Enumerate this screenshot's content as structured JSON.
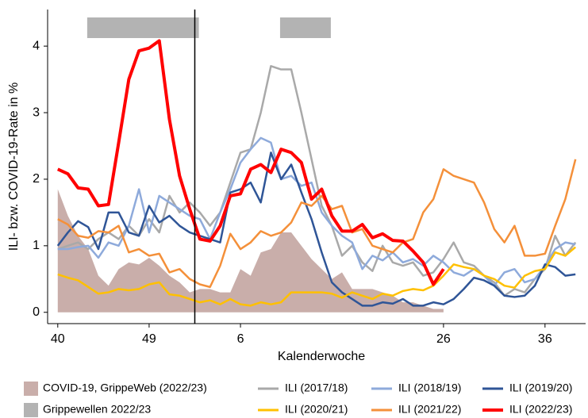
{
  "chart_data": {
    "type": "line",
    "ylabel": "ILI- bzw. COVID-19-Rate in %",
    "xlabel": "Kalenderwoche",
    "x": [
      0,
      1,
      2,
      3,
      4,
      5,
      6,
      7,
      8,
      9,
      10,
      11,
      12,
      13,
      14,
      15,
      16,
      17,
      18,
      19,
      20,
      21,
      22,
      23,
      24,
      25,
      26,
      27,
      28,
      29,
      30,
      31,
      32,
      33,
      34,
      35,
      36,
      37,
      38,
      39,
      40,
      41,
      42,
      43,
      44,
      45,
      46,
      47,
      48,
      49,
      50,
      51
    ],
    "xlim": [
      -1,
      52
    ],
    "xticks": [
      {
        "value": 0,
        "label": "40"
      },
      {
        "value": 9,
        "label": "49"
      },
      {
        "value": 18,
        "label": "6"
      },
      {
        "value": 38,
        "label": "26"
      },
      {
        "value": 48,
        "label": "36"
      }
    ],
    "ylim": [
      -0.17,
      4.55
    ],
    "yticks": [
      0,
      1,
      2,
      3,
      4
    ],
    "vline_x": 13.5,
    "periods": {
      "name": "Grippewellen 2022/23",
      "color": "#b3b3b3",
      "ranges": [
        [
          2.9,
          13.9
        ],
        [
          21.9,
          26.9
        ]
      ]
    },
    "series": [
      {
        "name": "COVID-19, GrippeWeb (2022/23)",
        "color": "#c9aeaa",
        "area": true,
        "values": [
          1.85,
          1.45,
          1.15,
          0.95,
          0.55,
          0.4,
          0.65,
          0.75,
          0.72,
          0.82,
          0.7,
          0.55,
          0.45,
          0.3,
          0.35,
          0.35,
          0.3,
          0.3,
          0.65,
          0.55,
          0.9,
          0.95,
          1.2,
          1.2,
          1.0,
          0.8,
          0.65,
          0.5,
          0.6,
          0.35,
          0.35,
          0.35,
          0.3,
          0.25,
          0.15,
          0.15,
          0.1,
          0.05,
          0.05,
          null,
          null,
          null,
          null,
          null,
          null,
          null,
          null,
          null,
          null,
          null,
          null,
          null
        ]
      },
      {
        "name": "ILI (2017/18)",
        "color": "#a9a9a9",
        "values": [
          0.95,
          1.0,
          1.05,
          0.95,
          1.1,
          1.2,
          1.1,
          1.3,
          1.15,
          1.4,
          1.2,
          1.75,
          1.5,
          1.65,
          1.5,
          1.3,
          1.5,
          1.95,
          2.4,
          2.45,
          3.0,
          3.7,
          3.65,
          3.65,
          3.0,
          2.3,
          1.6,
          1.3,
          0.85,
          1.0,
          0.75,
          0.62,
          1.0,
          0.75,
          0.7,
          0.75,
          0.55,
          0.6,
          0.8,
          1.05,
          0.75,
          0.7,
          0.55,
          0.45,
          0.25,
          0.35,
          0.3,
          0.5,
          0.65,
          1.15,
          0.85,
          1.05
        ]
      },
      {
        "name": "ILI (2018/19)",
        "color": "#8eaadb",
        "values": [
          0.95,
          0.95,
          0.98,
          1.0,
          0.82,
          1.05,
          1.0,
          1.3,
          1.85,
          1.2,
          1.75,
          1.65,
          1.55,
          1.45,
          1.4,
          1.1,
          1.5,
          1.85,
          2.25,
          2.45,
          2.62,
          2.55,
          2.0,
          2.05,
          1.9,
          1.95,
          1.5,
          1.3,
          1.15,
          1.05,
          0.65,
          0.85,
          0.78,
          0.9,
          0.75,
          0.8,
          0.7,
          0.85,
          0.75,
          0.6,
          0.55,
          0.65,
          0.55,
          0.4,
          0.6,
          0.65,
          0.45,
          0.5,
          0.7,
          0.95,
          1.05,
          1.02
        ]
      },
      {
        "name": "ILI (2019/20)",
        "color": "#2f5597",
        "values": [
          1.0,
          1.2,
          1.37,
          1.28,
          0.95,
          1.5,
          1.5,
          1.2,
          1.15,
          1.6,
          1.35,
          1.45,
          1.3,
          1.2,
          1.15,
          1.1,
          1.05,
          1.8,
          1.85,
          1.95,
          1.65,
          2.4,
          2.0,
          2.22,
          1.8,
          1.4,
          0.9,
          0.45,
          0.3,
          0.2,
          0.1,
          0.1,
          0.15,
          0.13,
          0.2,
          0.1,
          0.1,
          0.15,
          0.12,
          0.2,
          0.35,
          0.52,
          0.48,
          0.4,
          0.25,
          0.23,
          0.25,
          0.4,
          0.72,
          0.68,
          0.55,
          0.57
        ]
      },
      {
        "name": "ILI (2020/21)",
        "color": "#ffc000",
        "values": [
          0.57,
          0.52,
          0.48,
          0.38,
          0.28,
          0.3,
          0.35,
          0.33,
          0.35,
          0.42,
          0.45,
          0.27,
          0.25,
          0.2,
          0.15,
          0.18,
          0.12,
          0.2,
          0.12,
          0.1,
          0.15,
          0.12,
          0.15,
          0.3,
          0.3,
          0.3,
          0.3,
          0.28,
          0.22,
          0.3,
          0.25,
          0.2,
          0.28,
          0.25,
          0.32,
          0.35,
          0.33,
          0.4,
          0.55,
          0.72,
          0.68,
          0.65,
          0.55,
          0.5,
          0.4,
          0.37,
          0.55,
          0.62,
          0.65,
          0.9,
          0.85,
          0.98
        ]
      },
      {
        "name": "ILI (2021/22)",
        "color": "#f4903a",
        "values": [
          1.4,
          1.32,
          1.15,
          1.12,
          1.22,
          1.2,
          1.3,
          0.9,
          0.95,
          0.85,
          0.88,
          0.6,
          0.65,
          0.5,
          0.42,
          0.38,
          0.7,
          1.18,
          0.95,
          1.05,
          1.22,
          1.15,
          1.2,
          1.35,
          1.65,
          1.6,
          1.75,
          1.55,
          1.6,
          1.2,
          1.25,
          1.0,
          0.95,
          0.9,
          1.05,
          1.1,
          1.5,
          1.7,
          2.15,
          2.05,
          2.0,
          1.95,
          1.65,
          1.25,
          1.05,
          1.3,
          0.85,
          0.85,
          0.88,
          1.3,
          1.7,
          2.3
        ]
      },
      {
        "name": "ILI (2022/23)",
        "color": "#ff0000",
        "width": 4,
        "values": [
          2.15,
          2.08,
          1.87,
          1.85,
          1.6,
          1.62,
          2.55,
          3.5,
          3.93,
          3.97,
          4.08,
          2.9,
          2.05,
          1.55,
          1.1,
          1.07,
          1.3,
          1.75,
          1.78,
          2.15,
          2.22,
          2.1,
          2.45,
          2.4,
          2.25,
          1.7,
          1.85,
          1.45,
          1.22,
          1.22,
          1.32,
          1.12,
          1.18,
          1.08,
          1.07,
          0.92,
          0.75,
          0.42,
          0.65,
          null,
          null,
          null,
          null,
          null,
          null,
          null,
          null,
          null,
          null,
          null,
          null,
          null
        ]
      }
    ]
  }
}
